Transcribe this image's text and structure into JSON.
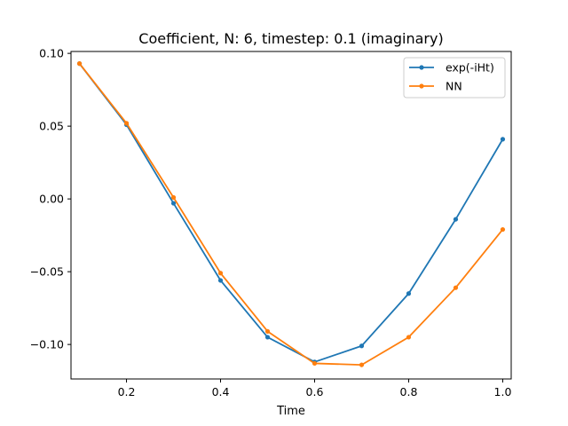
{
  "chart_data": {
    "type": "line",
    "title": "Coefficient, N: 6, timestep: 0.1 (imaginary)",
    "xlabel": "Time",
    "ylabel": "",
    "xlim": [
      0.082,
      1.018
    ],
    "ylim": [
      -0.1237,
      0.1013
    ],
    "x_ticks": [
      0.2,
      0.4,
      0.6,
      0.8,
      1.0
    ],
    "x_tick_labels": [
      "0.2",
      "0.4",
      "0.6",
      "0.8",
      "1.0"
    ],
    "y_ticks": [
      0.1,
      0.05,
      0.0,
      -0.05,
      -0.1
    ],
    "y_tick_labels": [
      "0.10",
      "0.05",
      "0.00",
      "−0.05",
      "−0.10"
    ],
    "grid": false,
    "legend_position": "top-right",
    "x": [
      0.1,
      0.2,
      0.3,
      0.4,
      0.5,
      0.6,
      0.7,
      0.8,
      0.9,
      1.0
    ],
    "series": [
      {
        "name": "exp(-iHt)",
        "color": "#1f77b4",
        "values": [
          0.093,
          0.051,
          -0.003,
          -0.056,
          -0.095,
          -0.112,
          -0.101,
          -0.065,
          -0.014,
          0.041
        ]
      },
      {
        "name": "NN",
        "color": "#ff7f0e",
        "values": [
          0.093,
          0.052,
          0.001,
          -0.051,
          -0.091,
          -0.113,
          -0.114,
          -0.095,
          -0.061,
          -0.021
        ]
      }
    ]
  }
}
